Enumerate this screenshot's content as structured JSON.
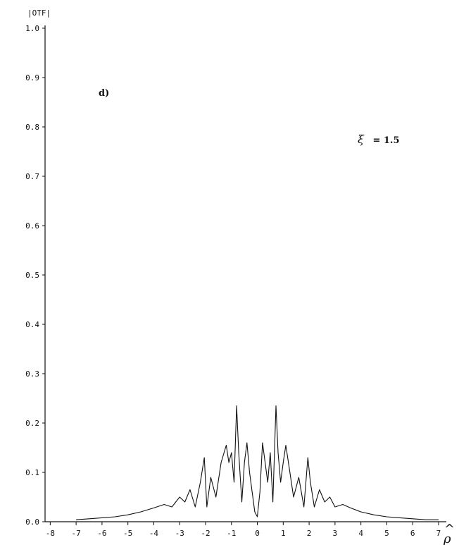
{
  "chart_data": {
    "type": "line",
    "title": "",
    "ylabel": "|OTF|",
    "xlabel_symbol": "ρ",
    "xlabel_hat": "^",
    "panel_label": "d)",
    "parameter_symbol": "ξ",
    "parameter_value": "= 1.5",
    "xlim": [
      -8.2,
      7.3
    ],
    "ylim": [
      0,
      1.0
    ],
    "x_ticks": [
      -8,
      -7,
      -6,
      -5,
      -4,
      -3,
      -2,
      -1,
      0,
      1,
      2,
      3,
      4,
      5,
      6,
      7
    ],
    "x_tick_labels": [
      "-8",
      "-7",
      "-6",
      "-5",
      "-4",
      "-3",
      "-2",
      "-1",
      "0",
      "1",
      "2",
      "3",
      "4",
      "5",
      "6",
      "7"
    ],
    "y_ticks": [
      0,
      0.1,
      0.2,
      0.3,
      0.4,
      0.5,
      0.6,
      0.7,
      0.8,
      0.9,
      1.0
    ],
    "y_tick_labels": [
      "0.0",
      "0.1",
      "0.2",
      "0.3",
      "0.4",
      "0.5",
      "0.6",
      "0.7",
      "0.8",
      "0.9",
      "1.0"
    ],
    "grid": false,
    "series": [
      {
        "x": [
          -7.0,
          -6.5,
          -6.0,
          -5.5,
          -5.0,
          -4.5,
          -4.0,
          -3.6,
          -3.3,
          -3.0,
          -2.8,
          -2.6,
          -2.4,
          -2.2,
          -2.05,
          -1.95,
          -1.8,
          -1.6,
          -1.4,
          -1.2,
          -1.1,
          -1.0,
          -0.9,
          -0.8,
          -0.72,
          -0.6,
          -0.5,
          -0.4,
          -0.3,
          -0.2,
          -0.1,
          0.0,
          0.1,
          0.2,
          0.3,
          0.4,
          0.5,
          0.6,
          0.72,
          0.8,
          0.9,
          1.0,
          1.1,
          1.2,
          1.4,
          1.6,
          1.8,
          1.95,
          2.05,
          2.2,
          2.4,
          2.6,
          2.8,
          3.0,
          3.3,
          3.6,
          4.0,
          4.5,
          5.0,
          5.5,
          6.0,
          6.5,
          7.0
        ],
        "y": [
          0.004,
          0.006,
          0.008,
          0.01,
          0.014,
          0.02,
          0.028,
          0.035,
          0.03,
          0.05,
          0.04,
          0.065,
          0.03,
          0.08,
          0.13,
          0.03,
          0.09,
          0.05,
          0.12,
          0.155,
          0.12,
          0.14,
          0.08,
          0.235,
          0.14,
          0.04,
          0.12,
          0.16,
          0.1,
          0.06,
          0.02,
          0.01,
          0.06,
          0.16,
          0.12,
          0.08,
          0.14,
          0.04,
          0.235,
          0.14,
          0.08,
          0.12,
          0.155,
          0.12,
          0.05,
          0.09,
          0.03,
          0.13,
          0.08,
          0.03,
          0.065,
          0.04,
          0.05,
          0.03,
          0.035,
          0.028,
          0.02,
          0.014,
          0.01,
          0.008,
          0.006,
          0.004,
          0.004
        ]
      }
    ]
  }
}
